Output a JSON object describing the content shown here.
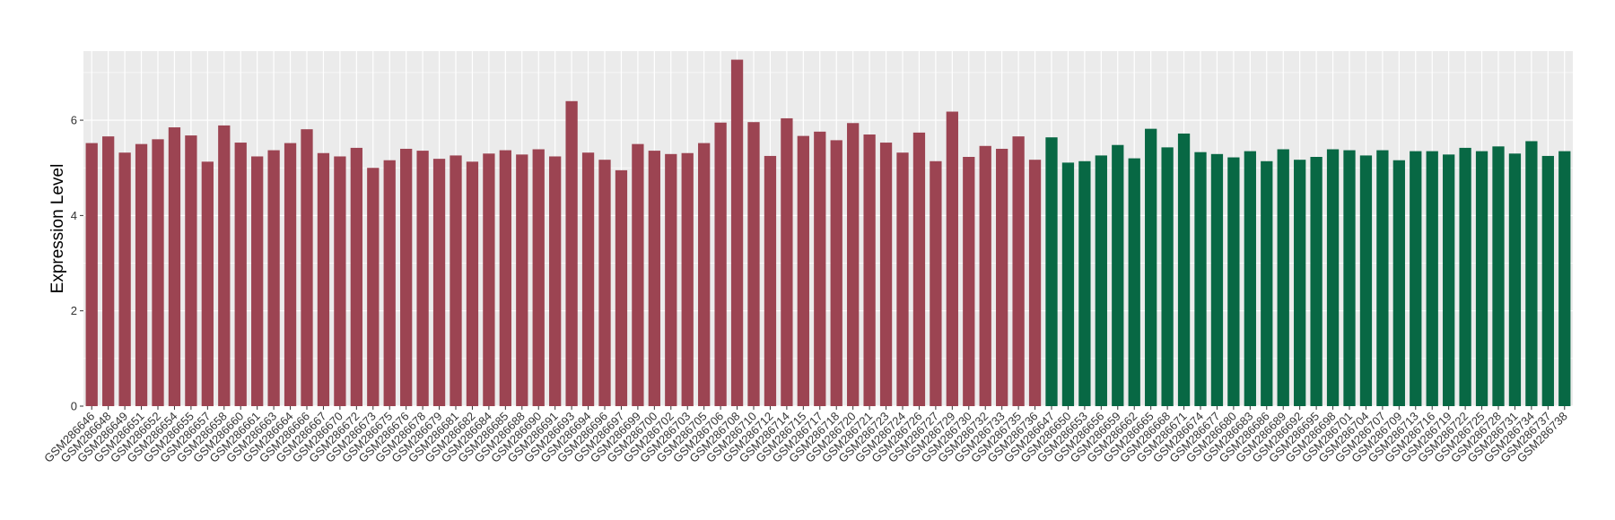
{
  "chart_data": {
    "type": "bar",
    "ylabel": "Expression Level",
    "xlabel": "",
    "ylim": [
      0,
      7.45
    ],
    "yticks": [
      0,
      2,
      4,
      6
    ],
    "grid": true,
    "legend": "none",
    "colors": {
      "group1": "#9c4452",
      "group2": "#086844",
      "panel": "#ebebeb",
      "grid": "#ffffff"
    },
    "categories": [
      "GSM286646",
      "GSM286648",
      "GSM286649",
      "GSM286651",
      "GSM286652",
      "GSM286654",
      "GSM286655",
      "GSM286657",
      "GSM286658",
      "GSM286660",
      "GSM286661",
      "GSM286663",
      "GSM286664",
      "GSM286666",
      "GSM286667",
      "GSM286670",
      "GSM286672",
      "GSM286673",
      "GSM286675",
      "GSM286676",
      "GSM286678",
      "GSM286679",
      "GSM286681",
      "GSM286682",
      "GSM286684",
      "GSM286685",
      "GSM286688",
      "GSM286690",
      "GSM286691",
      "GSM286693",
      "GSM286694",
      "GSM286696",
      "GSM286697",
      "GSM286699",
      "GSM286700",
      "GSM286702",
      "GSM286703",
      "GSM286705",
      "GSM286706",
      "GSM286708",
      "GSM286710",
      "GSM286712",
      "GSM286714",
      "GSM286715",
      "GSM286717",
      "GSM286718",
      "GSM286720",
      "GSM286721",
      "GSM286723",
      "GSM286724",
      "GSM286726",
      "GSM286727",
      "GSM286729",
      "GSM286730",
      "GSM286732",
      "GSM286733",
      "GSM286735",
      "GSM286736",
      "GSM286647",
      "GSM286650",
      "GSM286653",
      "GSM286656",
      "GSM286659",
      "GSM286662",
      "GSM286665",
      "GSM286668",
      "GSM286671",
      "GSM286674",
      "GSM286677",
      "GSM286680",
      "GSM286683",
      "GSM286686",
      "GSM286689",
      "GSM286692",
      "GSM286695",
      "GSM286698",
      "GSM286701",
      "GSM286704",
      "GSM286707",
      "GSM286709",
      "GSM286713",
      "GSM286716",
      "GSM286719",
      "GSM286722",
      "GSM286725",
      "GSM286728",
      "GSM286731",
      "GSM286734",
      "GSM286737",
      "GSM286738"
    ],
    "values": [
      5.52,
      5.66,
      5.32,
      5.5,
      5.6,
      5.85,
      5.68,
      5.13,
      5.89,
      5.53,
      5.24,
      5.37,
      5.52,
      5.81,
      5.31,
      5.24,
      5.42,
      5.0,
      5.16,
      5.4,
      5.36,
      5.19,
      5.26,
      5.13,
      5.3,
      5.37,
      5.28,
      5.39,
      5.24,
      6.4,
      5.32,
      5.17,
      4.95,
      5.5,
      5.36,
      5.29,
      5.31,
      5.52,
      5.95,
      7.27,
      5.96,
      5.25,
      6.04,
      5.67,
      5.76,
      5.58,
      5.94,
      5.7,
      5.53,
      5.32,
      5.74,
      5.14,
      6.18,
      5.23,
      5.46,
      5.4,
      5.66,
      5.17,
      5.64,
      5.11,
      5.14,
      5.26,
      5.48,
      5.2,
      5.82,
      5.43,
      5.72,
      5.33,
      5.29,
      5.22,
      5.35,
      5.14,
      5.39,
      5.17,
      5.23,
      5.39,
      5.37,
      5.26,
      5.37,
      5.16,
      5.35,
      5.35,
      5.28,
      5.42,
      5.35,
      5.45,
      5.3,
      5.56,
      5.25,
      5.35
    ],
    "group_sizes": [
      58,
      32
    ]
  }
}
